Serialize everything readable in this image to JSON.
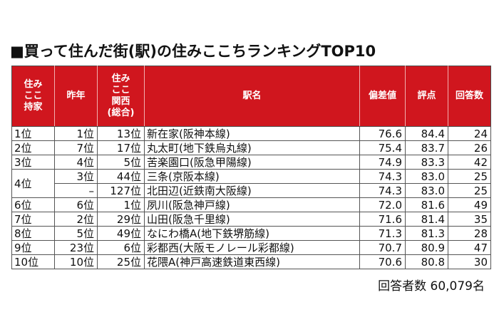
{
  "title": "■買って住んだ街(駅)の住みここちランキングTOP10",
  "headers": {
    "rank": "住み\nここ\n持家",
    "prev": "昨年",
    "kansai": "住み\nここ\n関西\n(総合)",
    "station": "駅名",
    "deviation": "偏差値",
    "score": "評点",
    "responses": "回答数"
  },
  "rows": [
    {
      "rank": "1位",
      "prev": "1位",
      "kansai": "13位",
      "station": "新在家(阪神本線)",
      "deviation": "76.6",
      "score": "84.4",
      "responses": "24"
    },
    {
      "rank": "2位",
      "prev": "7位",
      "kansai": "17位",
      "station": "丸太町(地下鉄烏丸線)",
      "deviation": "75.4",
      "score": "83.7",
      "responses": "26"
    },
    {
      "rank": "3位",
      "prev": "4位",
      "kansai": "5位",
      "station": "苦楽園口(阪急甲陽線)",
      "deviation": "74.9",
      "score": "83.3",
      "responses": "42"
    },
    {
      "rank": "4位",
      "prev": "3位",
      "kansai": "44位",
      "station": "三条(京阪本線)",
      "deviation": "74.3",
      "score": "83.0",
      "responses": "25"
    },
    {
      "rank": "",
      "prev": "–",
      "kansai": "127位",
      "station": "北田辺(近鉄南大阪線)",
      "deviation": "74.3",
      "score": "83.0",
      "responses": "25"
    },
    {
      "rank": "6位",
      "prev": "6位",
      "kansai": "1位",
      "station": "夙川(阪急神戸線)",
      "deviation": "72.0",
      "score": "81.6",
      "responses": "49"
    },
    {
      "rank": "7位",
      "prev": "2位",
      "kansai": "29位",
      "station": "山田(阪急千里線)",
      "deviation": "71.6",
      "score": "81.4",
      "responses": "35"
    },
    {
      "rank": "8位",
      "prev": "5位",
      "kansai": "49位",
      "station": "なにわ橋A(地下鉄堺筋線)",
      "deviation": "71.3",
      "score": "81.3",
      "responses": "28"
    },
    {
      "rank": "9位",
      "prev": "23位",
      "kansai": "6位",
      "station": "彩都西(大阪モノレール彩都線)",
      "deviation": "70.7",
      "score": "80.9",
      "responses": "47"
    },
    {
      "rank": "10位",
      "prev": "10位",
      "kansai": "25位",
      "station": "花隈A(神戸高速鉄道東西線)",
      "deviation": "70.6",
      "score": "80.8",
      "responses": "30"
    }
  ],
  "footer": "回答者数 60,079名",
  "colors": {
    "header_bg": "#d0161e",
    "header_text": "#ffffff",
    "border": "#555555"
  }
}
